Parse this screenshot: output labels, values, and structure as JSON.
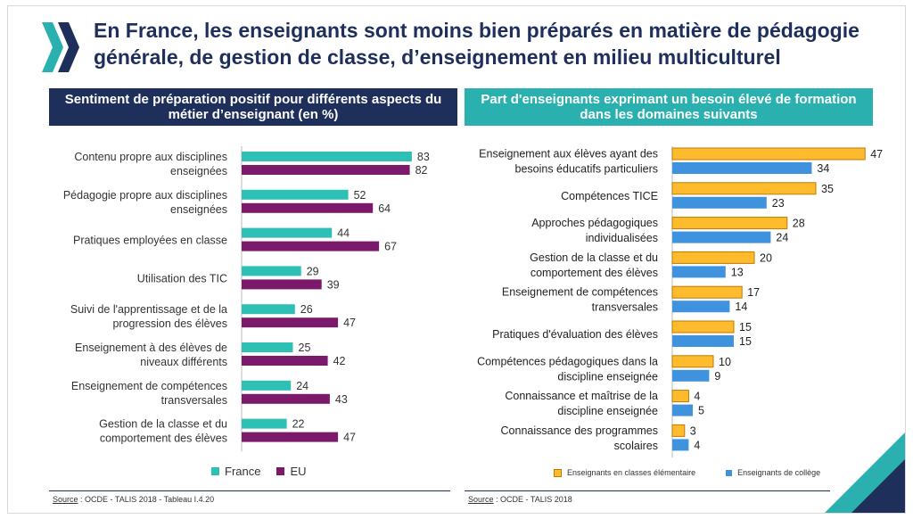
{
  "title": "En France, les enseignants sont moins bien préparés en matière de pédagogie générale, de gestion de classe, d’enseignement en milieu multiculturel",
  "colors": {
    "navy": "#1f2f5c",
    "teal": "#2bb0b0",
    "france": "#2ebfb5",
    "eu": "#7b1a6b",
    "elementaire": "#fdbb2d",
    "college": "#3e92de"
  },
  "left_panel": {
    "header": "Sentiment de préparation positif pour différents aspects du métier d’enseignant (en %)",
    "legend": {
      "france": "France",
      "eu": "EU"
    },
    "source_label": "Source",
    "source_text": " : OCDE - TALIS 2018 - Tableau I.4.20"
  },
  "right_panel": {
    "header": "Part d'enseignants exprimant un besoin élevé de formation dans les domaines suivants",
    "legend": {
      "elementaire": "Enseignants en classes élémentaire",
      "college": "Enseignants de collège"
    },
    "source_label": "Source",
    "source_text": " : OCDE - TALIS 2018"
  },
  "chart_data": [
    {
      "type": "bar",
      "orientation": "horizontal",
      "title": "Sentiment de préparation positif pour différents aspects du métier d’enseignant (en %)",
      "categories": [
        [
          "Contenu propre aux disciplines",
          "enseignées"
        ],
        [
          "Pédagogie propre aux disciplines",
          "enseignées"
        ],
        [
          "Pratiques employées en classe"
        ],
        [
          "Utilisation des TIC"
        ],
        [
          "Suivi de l'apprentissage et de la",
          "progression des élèves"
        ],
        [
          "Enseignement à des élèves de",
          "niveaux différents"
        ],
        [
          "Enseignement de compétences",
          "transversales"
        ],
        [
          "Gestion de la classe et du",
          "comportement des élèves"
        ]
      ],
      "series": [
        {
          "name": "France",
          "values": [
            83,
            52,
            44,
            29,
            26,
            25,
            24,
            22
          ]
        },
        {
          "name": "EU",
          "values": [
            82,
            64,
            67,
            39,
            47,
            42,
            43,
            47
          ]
        }
      ],
      "xlim": [
        0,
        100
      ],
      "grid": false,
      "legend_position": "bottom"
    },
    {
      "type": "bar",
      "orientation": "horizontal",
      "title": "Part d'enseignants exprimant un besoin élevé de formation dans les domaines suivants",
      "categories": [
        [
          "Enseignement aux élèves ayant des",
          "besoins éducatifs particuliers"
        ],
        [
          "Compétences TICE"
        ],
        [
          "Approches pédagogiques",
          "individualisées"
        ],
        [
          "Gestion de la classe et du",
          "comportement des élèves"
        ],
        [
          "Enseignement de compétences",
          "transversales"
        ],
        [
          "Pratiques d'évaluation des élèves"
        ],
        [
          "Compétences pédagogiques dans la",
          "discipline enseignée"
        ],
        [
          "Connaissance et maîtrise de la",
          "discipline enseignée"
        ],
        [
          "Connaissance des programmes",
          "scolaires"
        ]
      ],
      "series": [
        {
          "name": "Enseignants en classes élémentaire",
          "values": [
            47,
            35,
            28,
            20,
            17,
            15,
            10,
            4,
            3
          ]
        },
        {
          "name": "Enseignants de collège",
          "values": [
            34,
            23,
            24,
            13,
            14,
            15,
            9,
            5,
            4
          ]
        }
      ],
      "xlim": [
        0,
        50
      ],
      "grid": false,
      "legend_position": "bottom"
    }
  ]
}
